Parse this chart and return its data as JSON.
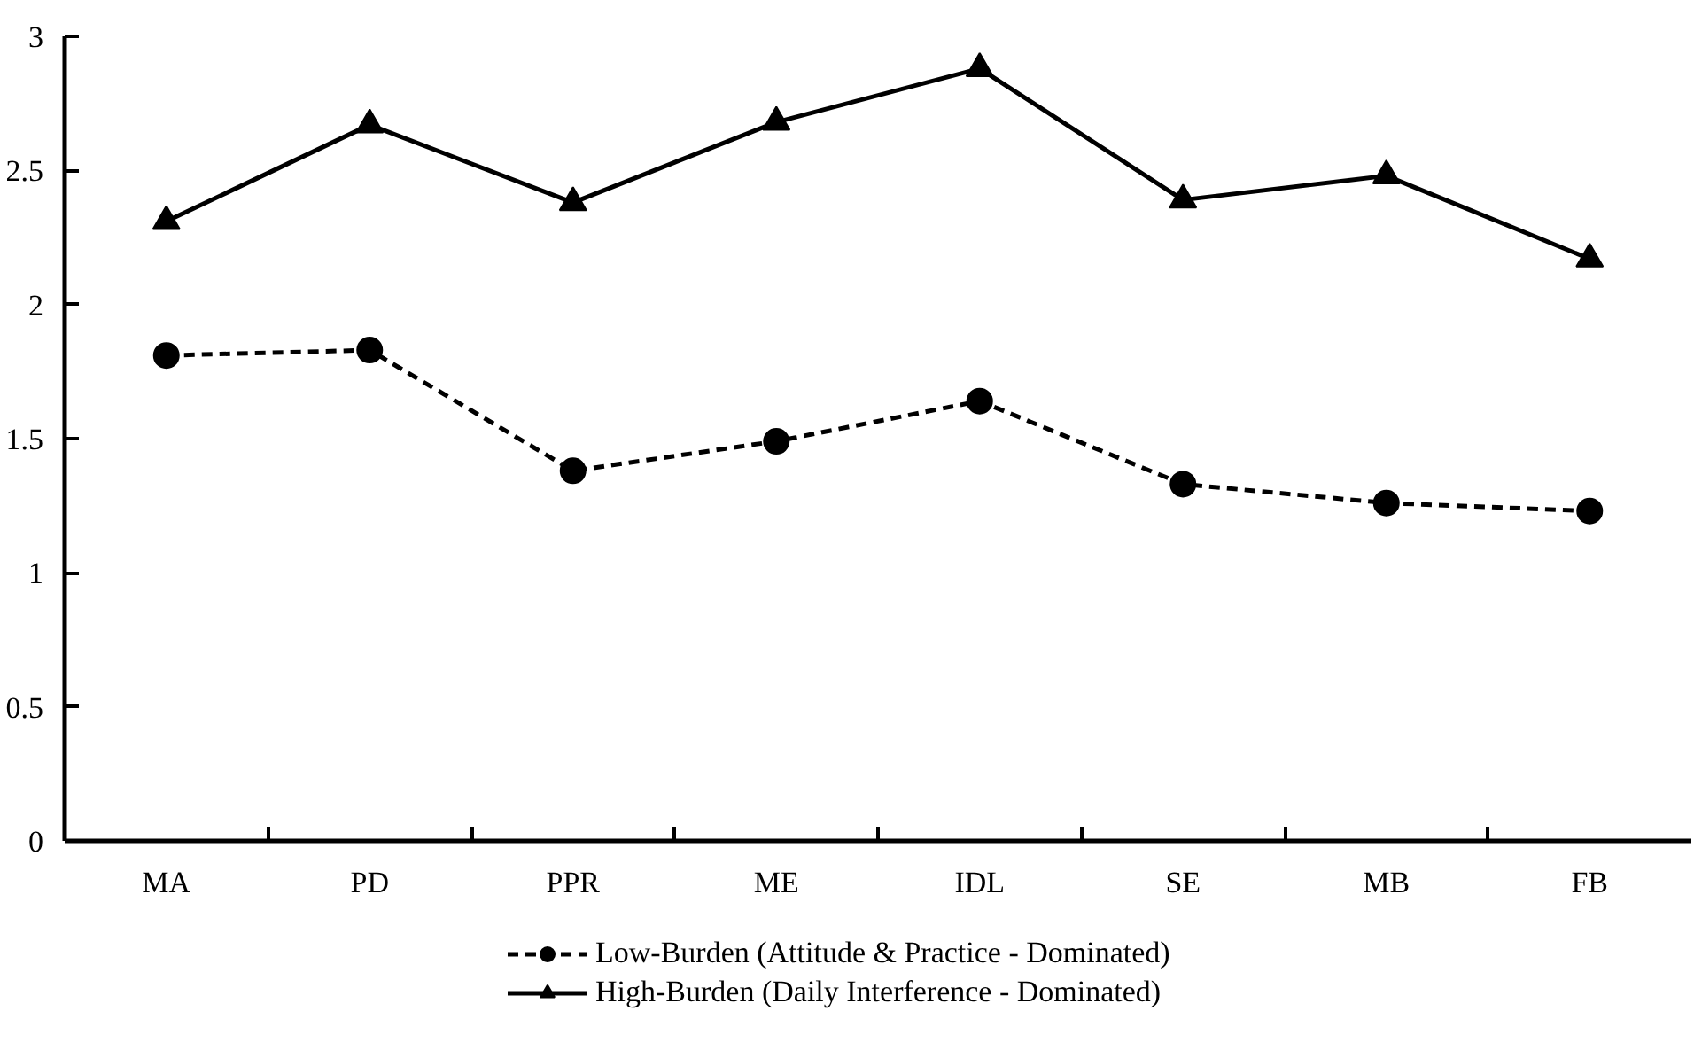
{
  "chart_data": {
    "type": "line",
    "categories": [
      "MA",
      "PD",
      "PPR",
      "ME",
      "IDL",
      "SE",
      "MB",
      "FB"
    ],
    "series": [
      {
        "name": "Low-Burden (Attitude & Practice - Dominated)",
        "color": "#000000",
        "marker": "circle",
        "line_style": "dashed",
        "values": [
          1.81,
          1.83,
          1.38,
          1.49,
          1.64,
          1.33,
          1.26,
          1.23
        ]
      },
      {
        "name": "High-Burden (Daily Interference - Dominated)",
        "color": "#000000",
        "marker": "triangle",
        "line_style": "solid",
        "values": [
          2.31,
          2.67,
          2.38,
          2.68,
          2.88,
          2.39,
          2.48,
          2.17
        ]
      }
    ],
    "ylim": [
      0,
      3
    ],
    "yticks": [
      0,
      0.5,
      1,
      1.5,
      2,
      2.5,
      3
    ],
    "grid": false,
    "legend": "bottom"
  }
}
